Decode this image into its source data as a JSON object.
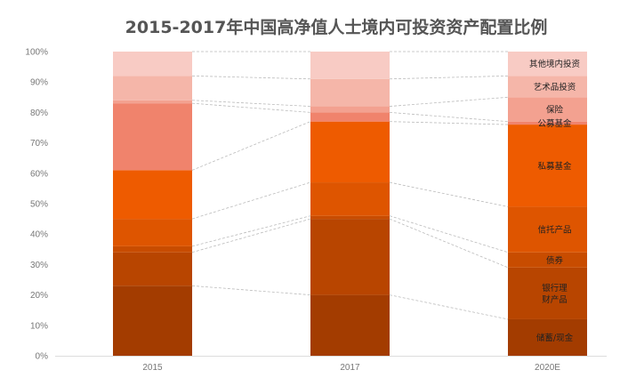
{
  "chart_data": {
    "type": "bar",
    "stacked": true,
    "percent": true,
    "title": "2015-2017年中国高净值人士境内可投资资产配置比例",
    "categories": [
      "2015",
      "2017",
      "2020E"
    ],
    "ylim": [
      0,
      100
    ],
    "yticks": [
      "0%",
      "10%",
      "20%",
      "30%",
      "40%",
      "50%",
      "60%",
      "70%",
      "80%",
      "90%",
      "100%"
    ],
    "grid": false,
    "connector_lines": "dashed",
    "series": [
      {
        "name": "储蓄/现金",
        "values": [
          23,
          20,
          12
        ],
        "color": "#A33C00"
      },
      {
        "name": "银行理\n财产品",
        "values": [
          11,
          25,
          17
        ],
        "color": "#B84500"
      },
      {
        "name": "债券",
        "values": [
          2,
          1,
          5
        ],
        "color": "#C84C00"
      },
      {
        "name": "信托产品",
        "values": [
          9,
          11,
          15
        ],
        "color": "#DE5500"
      },
      {
        "name": "私募基金",
        "values": [
          16,
          20,
          27
        ],
        "color": "#EE5B00"
      },
      {
        "name": "公募基金",
        "values": [
          22,
          3,
          1
        ],
        "color": "#F0836C"
      },
      {
        "name": "保险",
        "values": [
          1,
          2,
          8
        ],
        "color": "#F3A190"
      },
      {
        "name": "艺术品投资",
        "values": [
          8,
          9,
          7
        ],
        "color": "#F5B6A9"
      },
      {
        "name": "其他境内投资",
        "values": [
          8,
          9,
          8
        ],
        "color": "#F8CBC4"
      }
    ],
    "labels_in_bar": "2020E"
  }
}
